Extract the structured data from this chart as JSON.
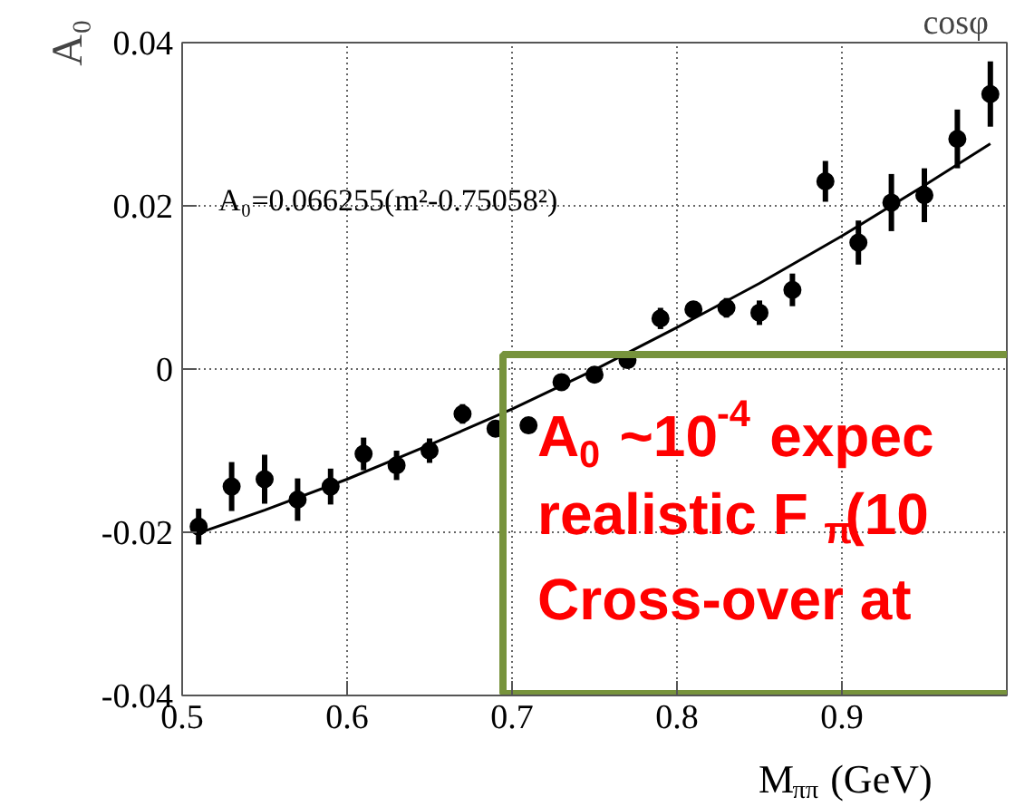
{
  "chart_data": {
    "type": "scatter",
    "xlabel": "M$_{ππ}$ (GeV)",
    "ylabel": "A₀",
    "xlim": [
      0.5,
      1.0
    ],
    "ylim": [
      -0.04,
      0.04
    ],
    "xticks": [
      0.5,
      0.6,
      0.7,
      0.8,
      0.9
    ],
    "yticks": [
      -0.04,
      -0.02,
      0,
      0.02,
      0.04
    ],
    "grid": true,
    "annotations": [
      "cosφ",
      "A₀=0.066255(m²-0.75058²)",
      "A$_{0}$ ~10$^{-4}$ expec",
      "realistic F$_{π}$(10",
      "Cross-over at"
    ],
    "series": [
      {
        "marker": "circle",
        "color": "#000000",
        "x": [
          0.51,
          0.53,
          0.55,
          0.57,
          0.59,
          0.61,
          0.63,
          0.65,
          0.67,
          0.69,
          0.71,
          0.73,
          0.75,
          0.77,
          0.79,
          0.81,
          0.83,
          0.85,
          0.87,
          0.89,
          0.91,
          0.93,
          0.95,
          0.97,
          0.99
        ],
        "values": [
          -0.0193,
          -0.0144,
          -0.0135,
          -0.016,
          -0.0144,
          -0.0104,
          -0.0118,
          -0.01,
          -0.0055,
          -0.0073,
          -0.0069,
          -0.0016,
          -0.0007,
          0.0011,
          0.0062,
          0.0073,
          0.0075,
          0.0069,
          0.0097,
          0.023,
          0.0155,
          0.0204,
          0.0213,
          0.0282,
          0.0337
        ],
        "errors": [
          0.0022,
          0.003,
          0.003,
          0.0026,
          0.0022,
          0.002,
          0.0018,
          0.0015,
          0.0012,
          0.001,
          0.001,
          0.001,
          0.001,
          0.001,
          0.0013,
          0.001,
          0.0012,
          0.0015,
          0.002,
          0.0025,
          0.0027,
          0.0035,
          0.0033,
          0.0036,
          0.004
        ]
      },
      {
        "type": "line",
        "color": "#000000",
        "x": [
          0.51,
          0.55,
          0.6,
          0.65,
          0.7,
          0.75,
          0.8,
          0.85,
          0.9,
          0.95,
          0.99
        ],
        "values": [
          -0.0201,
          -0.0173,
          -0.0135,
          -0.0093,
          -0.0049,
          -0.0001,
          0.0051,
          0.0105,
          0.0163,
          0.0225,
          0.0276
        ]
      }
    ]
  }
}
